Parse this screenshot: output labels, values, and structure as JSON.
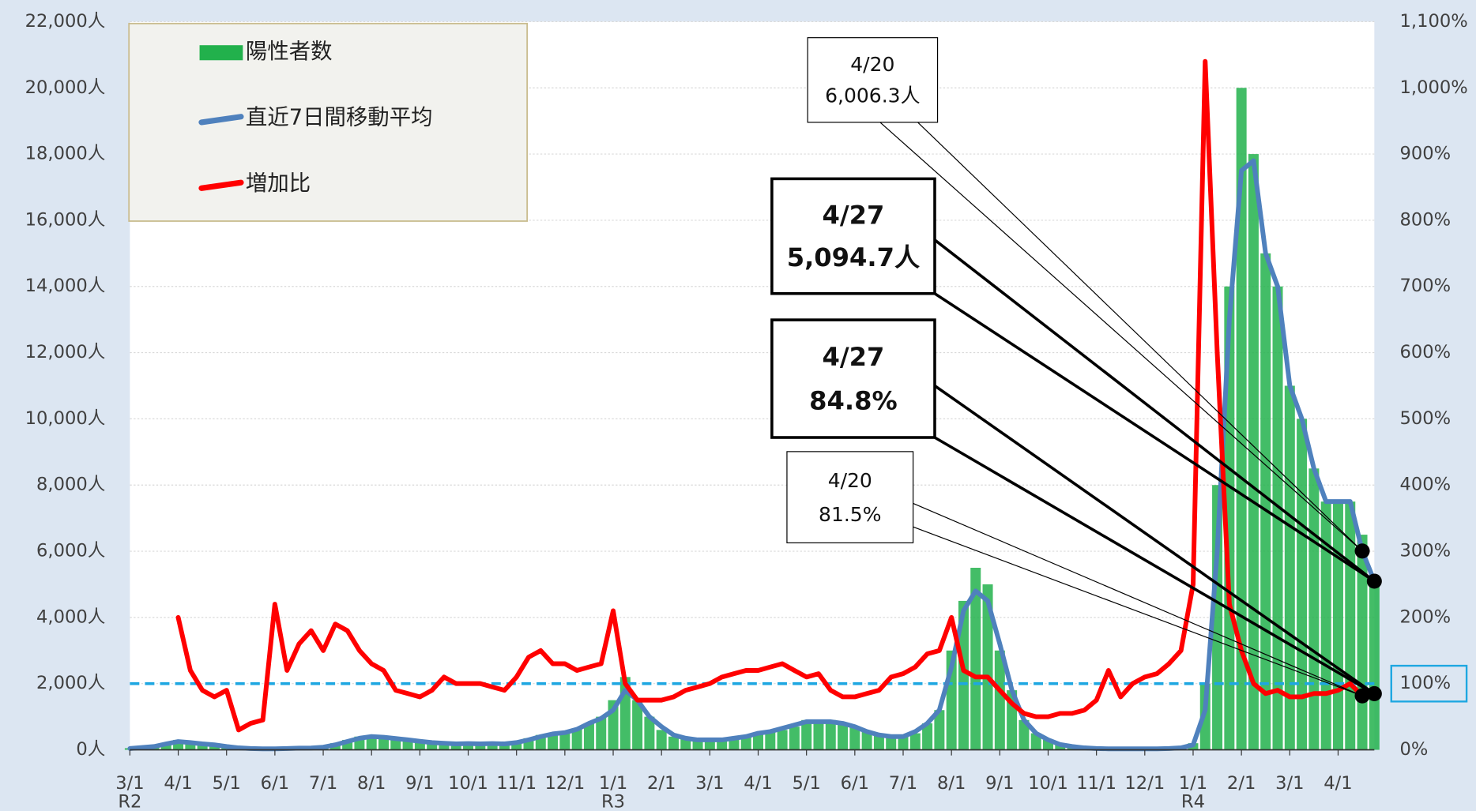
{
  "chart_data": {
    "type": "combo",
    "categories": [
      "3/1",
      null,
      null,
      null,
      "4/1",
      null,
      null,
      null,
      "5/1",
      null,
      null,
      null,
      "6/1",
      null,
      null,
      null,
      "7/1",
      null,
      null,
      null,
      "8/1",
      null,
      null,
      null,
      "9/1",
      null,
      null,
      null,
      "10/1",
      null,
      null,
      null,
      "11/1",
      null,
      null,
      null,
      "12/1",
      null,
      null,
      null,
      "1/1",
      null,
      null,
      null,
      "2/1",
      null,
      null,
      null,
      "3/1",
      null,
      null,
      null,
      "4/1",
      null,
      null,
      null,
      "5/1",
      null,
      null,
      null,
      "6/1",
      null,
      null,
      null,
      "7/1",
      null,
      null,
      null,
      "8/1",
      null,
      null,
      null,
      "9/1",
      null,
      null,
      null,
      "10/1",
      null,
      null,
      null,
      "11/1",
      null,
      null,
      null,
      "12/1",
      null,
      null,
      null,
      "1/1",
      null,
      null,
      null,
      "2/1",
      null,
      null,
      null,
      "3/1",
      null,
      null,
      null,
      "4/1",
      null,
      null,
      null
    ],
    "era_labels": [
      "R2",
      null,
      null,
      null,
      null,
      null,
      null,
      null,
      null,
      null,
      null,
      null,
      null,
      null,
      null,
      null,
      null,
      null,
      null,
      null,
      null,
      null,
      null,
      null,
      null,
      null,
      null,
      null,
      null,
      null,
      null,
      null,
      null,
      null,
      null,
      null,
      null,
      null,
      null,
      null,
      "R3",
      null,
      null,
      null,
      null,
      null,
      null,
      null,
      null,
      null,
      null,
      null,
      null,
      null,
      null,
      null,
      null,
      null,
      null,
      null,
      null,
      null,
      null,
      null,
      null,
      null,
      null,
      null,
      null,
      null,
      null,
      null,
      null,
      null,
      null,
      null,
      null,
      null,
      null,
      null,
      null,
      null,
      null,
      null,
      null,
      null,
      null,
      null,
      "R4",
      null,
      null,
      null,
      null,
      null,
      null,
      null,
      null,
      null,
      null,
      null,
      null,
      null,
      null,
      null
    ],
    "series": [
      {
        "name": "陽性者数",
        "type": "bar",
        "color": "#22b14c",
        "axis": "y",
        "values": [
          50,
          80,
          100,
          200,
          300,
          250,
          200,
          150,
          100,
          60,
          40,
          30,
          30,
          50,
          60,
          50,
          100,
          200,
          300,
          400,
          400,
          380,
          350,
          300,
          250,
          200,
          200,
          180,
          200,
          180,
          200,
          180,
          250,
          350,
          450,
          500,
          550,
          650,
          800,
          1000,
          1500,
          2200,
          1500,
          1000,
          600,
          400,
          350,
          300,
          300,
          300,
          350,
          400,
          500,
          550,
          600,
          700,
          900,
          800,
          900,
          800,
          700,
          550,
          450,
          400,
          400,
          500,
          800,
          1200,
          3000,
          4500,
          5500,
          5000,
          3000,
          1800,
          900,
          500,
          300,
          150,
          100,
          60,
          40,
          30,
          30,
          30,
          30,
          30,
          40,
          60,
          200,
          2000,
          8000,
          14000,
          20000,
          18000,
          15000,
          14000,
          11000,
          10000,
          8500,
          7500,
          7500,
          7500,
          6500,
          5000
        ]
      },
      {
        "name": "直近7日間移動平均",
        "type": "line",
        "color": "#4f81bd",
        "axis": "y",
        "values": [
          40,
          70,
          100,
          180,
          250,
          220,
          180,
          150,
          100,
          60,
          40,
          30,
          30,
          40,
          50,
          55,
          80,
          150,
          250,
          350,
          400,
          380,
          340,
          300,
          260,
          220,
          200,
          180,
          190,
          180,
          190,
          180,
          220,
          300,
          400,
          480,
          520,
          620,
          800,
          950,
          1200,
          1800,
          1500,
          1000,
          700,
          450,
          350,
          300,
          300,
          300,
          350,
          400,
          500,
          550,
          650,
          750,
          850,
          850,
          850,
          800,
          700,
          550,
          450,
          400,
          400,
          550,
          800,
          1200,
          2500,
          4200,
          4800,
          4500,
          3200,
          1800,
          900,
          500,
          300,
          160,
          100,
          60,
          40,
          30,
          30,
          30,
          30,
          30,
          40,
          60,
          150,
          1200,
          6000,
          13000,
          17500,
          17800,
          15000,
          14000,
          11000,
          10000,
          8500,
          7500,
          7500,
          7500,
          6006.3,
          5094.7
        ]
      },
      {
        "name": "増加比",
        "type": "line",
        "color": "#ff0000",
        "axis": "y2",
        "values": [
          null,
          null,
          null,
          null,
          200,
          120,
          90,
          80,
          90,
          30,
          40,
          45,
          220,
          120,
          160,
          180,
          150,
          190,
          180,
          150,
          130,
          120,
          90,
          85,
          80,
          90,
          110,
          100,
          100,
          100,
          95,
          90,
          110,
          140,
          150,
          130,
          130,
          120,
          125,
          130,
          210,
          100,
          75,
          75,
          75,
          80,
          90,
          95,
          100,
          110,
          115,
          120,
          120,
          125,
          130,
          120,
          110,
          115,
          90,
          80,
          80,
          85,
          90,
          110,
          115,
          125,
          145,
          150,
          200,
          120,
          110,
          110,
          90,
          70,
          55,
          50,
          50,
          55,
          55,
          60,
          75,
          120,
          80,
          100,
          110,
          115,
          130,
          150,
          250,
          1040,
          600,
          220,
          150,
          100,
          85,
          90,
          80,
          80,
          85,
          85,
          90,
          100,
          81.5,
          84.8
        ]
      }
    ],
    "ylim": [
      0,
      22000
    ],
    "yticks": [
      {
        "value": 0,
        "label": "0人"
      },
      {
        "value": 2000,
        "label": "2,000人"
      },
      {
        "value": 4000,
        "label": "4,000人"
      },
      {
        "value": 6000,
        "label": "6,000人"
      },
      {
        "value": 8000,
        "label": "8,000人"
      },
      {
        "value": 10000,
        "label": "10,000人"
      },
      {
        "value": 12000,
        "label": "12,000人"
      },
      {
        "value": 14000,
        "label": "14,000人"
      },
      {
        "value": 16000,
        "label": "16,000人"
      },
      {
        "value": 18000,
        "label": "18,000人"
      },
      {
        "value": 20000,
        "label": "20,000人"
      },
      {
        "value": 22000,
        "label": "22,000人"
      }
    ],
    "y2lim": [
      0,
      1100
    ],
    "y2ticks": [
      {
        "value": 0,
        "label": "0%"
      },
      {
        "value": 100,
        "label": "100%"
      },
      {
        "value": 200,
        "label": "200%"
      },
      {
        "value": 300,
        "label": "300%"
      },
      {
        "value": 400,
        "label": "400%"
      },
      {
        "value": 500,
        "label": "500%"
      },
      {
        "value": 600,
        "label": "600%"
      },
      {
        "value": 700,
        "label": "700%"
      },
      {
        "value": 800,
        "label": "800%"
      },
      {
        "value": 900,
        "label": "900%"
      },
      {
        "value": 1000,
        "label": "1,000%"
      },
      {
        "value": 1100,
        "label": "1,100%"
      }
    ],
    "reference_line": {
      "value": 100,
      "axis": "y2",
      "color": "#1ea7e1"
    },
    "grid": true,
    "legend": "top-left",
    "annotations": [
      {
        "lines": [
          "4/20",
          "6,006.3人"
        ],
        "bold": false,
        "series": 1,
        "point": 102
      },
      {
        "lines": [
          "4/27",
          "5,094.7人"
        ],
        "bold": true,
        "series": 1,
        "point": 103
      },
      {
        "lines": [
          "4/27",
          "84.8%"
        ],
        "bold": true,
        "series": 2,
        "point": 103
      },
      {
        "lines": [
          "4/20",
          "81.5%"
        ],
        "bold": false,
        "series": 2,
        "point": 102
      }
    ]
  }
}
